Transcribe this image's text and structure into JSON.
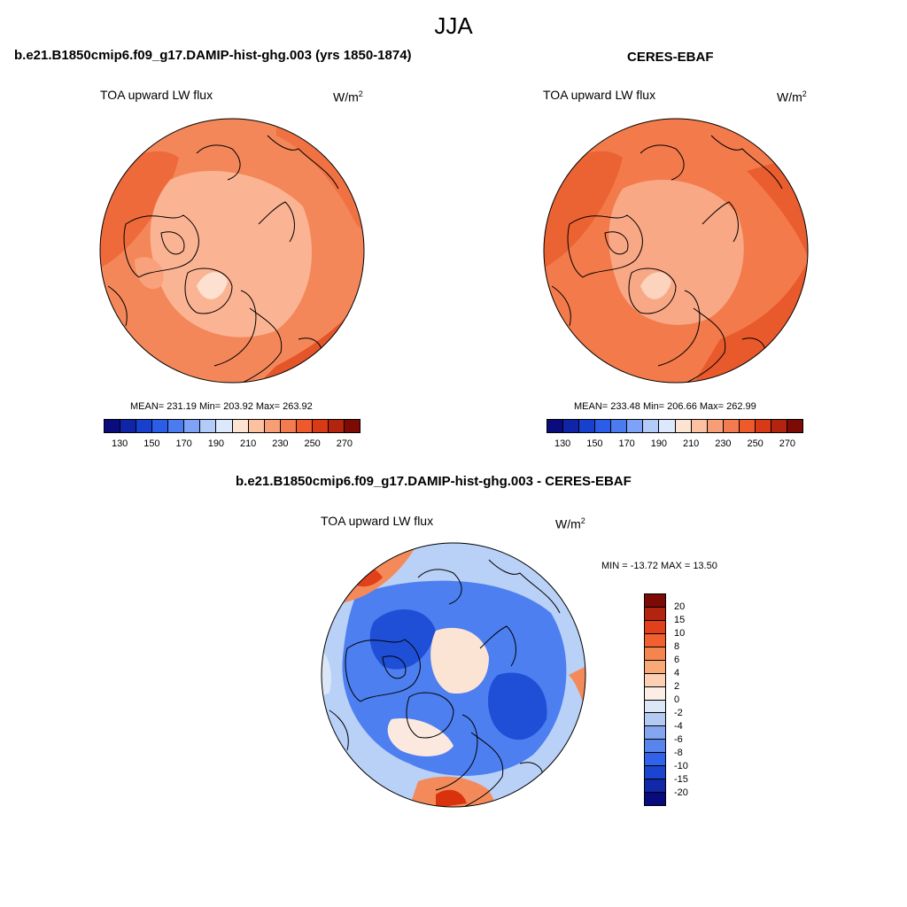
{
  "season": "JJA",
  "panels": {
    "model": {
      "title": "b.e21.B1850cmip6.f09_g17.DAMIP-hist-ghg.003 (yrs 1850-1874)",
      "variable": "TOA upward LW flux",
      "units_base": "W/m",
      "units_sup": "2",
      "stats": "MEAN= 231.19  Min= 203.92  Max= 263.92"
    },
    "obs": {
      "title": "CERES-EBAF",
      "variable": "TOA upward LW flux",
      "units_base": "W/m",
      "units_sup": "2",
      "stats": "MEAN= 233.48  Min= 206.66  Max= 262.99"
    },
    "diff": {
      "title": "b.e21.B1850cmip6.f09_g17.DAMIP-hist-ghg.003 - CERES-EBAF",
      "variable": "TOA upward LW flux",
      "units_base": "W/m",
      "units_sup": "2",
      "stats": "MIN = -13.72 MAX =  13.50"
    }
  },
  "colorbar_abs": {
    "ticks": [
      "130",
      "150",
      "170",
      "190",
      "210",
      "230",
      "250",
      "270"
    ],
    "colors": [
      "#0a0c7e",
      "#0f24a6",
      "#1840cf",
      "#2b5de8",
      "#4a7cf0",
      "#7ea2f5",
      "#b2cbf8",
      "#dce8fb",
      "#fde3d2",
      "#fbc1a1",
      "#f89e77",
      "#f47b4f",
      "#ef5a2c",
      "#d93a16",
      "#b3240e",
      "#7c0b06"
    ]
  },
  "colorbar_diff": {
    "labels": [
      "20",
      "15",
      "10",
      "8",
      "6",
      "4",
      "2",
      "0",
      "-2",
      "-4",
      "-6",
      "-8",
      "-10",
      "-15",
      "-20"
    ],
    "colors": [
      "#7c0b06",
      "#b3240e",
      "#e2401a",
      "#f0612f",
      "#f5854f",
      "#f9a878",
      "#fdd0b4",
      "#fbeee4",
      "#dbe6f7",
      "#b3cbf3",
      "#84a6ef",
      "#5885ec",
      "#3063e9",
      "#1b45cf",
      "#1128a8",
      "#080b7d"
    ]
  },
  "map_colors": {
    "model_base": "#f4875a",
    "obs_base": "#f37a4b",
    "diff_base": "#3d6ff0"
  }
}
